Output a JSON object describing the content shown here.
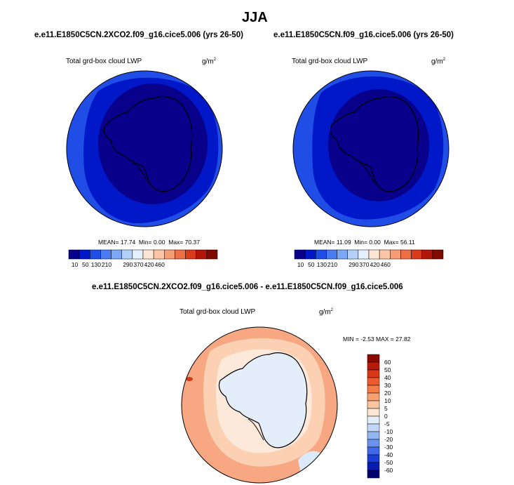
{
  "title": "JJA",
  "panels": [
    {
      "case": "e.e11.E1850C5CN.2XCO2.f09_g16.cice5.006 (yrs 26-50)",
      "variable": "Total grd-box cloud LWP",
      "units_base": "g/m",
      "units_exp": "2",
      "stats": {
        "mean_label": "MEAN=",
        "mean": "17.74",
        "min_label": "Min=",
        "min": "0.00",
        "max_label": "Max=",
        "max": "70.37"
      }
    },
    {
      "case": "e.e11.E1850C5CN.f09_g16.cice5.006 (yrs 26-50)",
      "variable": "Total grd-box cloud LWP",
      "units_base": "g/m",
      "units_exp": "2",
      "stats": {
        "mean_label": "MEAN=",
        "mean": "11.09",
        "min_label": "Min=",
        "min": "0.00",
        "max_label": "Max=",
        "max": "56.11"
      }
    },
    {
      "case": "e.e11.E1850C5CN.2XCO2.f09_g16.cice5.006 - e.e11.E1850C5CN.f09_g16.cice5.006",
      "variable": "Total grd-box cloud LWP",
      "units_base": "g/m",
      "units_exp": "2",
      "stats": {
        "min_label": "MIN =",
        "min": "-2.53",
        "max_label": "MAX =",
        "max": "27.82"
      }
    }
  ],
  "chart_data": [
    {
      "type": "heatmap",
      "projection": "south-polar stereographic",
      "colorbar": {
        "orientation": "horizontal",
        "levels": [
          "10",
          "50",
          "130",
          "210",
          "290",
          "370",
          "420",
          "460"
        ],
        "colors": [
          "#08008a",
          "#0018c8",
          "#1f4de6",
          "#4a7bf0",
          "#7ba8f4",
          "#b4d0f8",
          "#e6f0fc",
          "#fde5d3",
          "#fbc5a6",
          "#f59d74",
          "#ee6f45",
          "#d83b1c",
          "#b11608",
          "#7f0a00"
        ]
      },
      "map_colors": [
        "#08008a",
        "#0018c8",
        "#1f4de6"
      ]
    },
    {
      "type": "heatmap",
      "projection": "south-polar stereographic",
      "colorbar": {
        "orientation": "horizontal",
        "levels": [
          "10",
          "50",
          "130",
          "210",
          "290",
          "370",
          "420",
          "460"
        ],
        "colors": [
          "#08008a",
          "#0018c8",
          "#1f4de6",
          "#4a7bf0",
          "#7ba8f4",
          "#b4d0f8",
          "#e6f0fc",
          "#fde5d3",
          "#fbc5a6",
          "#f59d74",
          "#ee6f45",
          "#d83b1c",
          "#b11608",
          "#7f0a00"
        ]
      },
      "map_colors": [
        "#08008a",
        "#0018c8",
        "#1f4de6"
      ]
    },
    {
      "type": "heatmap",
      "projection": "south-polar stereographic",
      "colorbar": {
        "orientation": "vertical",
        "levels": [
          "60",
          "50",
          "40",
          "30",
          "20",
          "10",
          "5",
          "0",
          "-5",
          "-10",
          "-20",
          "-30",
          "-40",
          "-50",
          "-60"
        ],
        "colors": [
          "#8a0a00",
          "#b81a0a",
          "#d83818",
          "#ee5a2c",
          "#f57d4a",
          "#f9a070",
          "#fbc3a0",
          "#fde6d2",
          "#e4eefb",
          "#c2d7f7",
          "#94b6f3",
          "#6a92ee",
          "#3f69e6",
          "#1b3fd6",
          "#0a1cb0",
          "#02006e"
        ]
      },
      "map_colors": [
        "#f7a883",
        "#fcd0b2",
        "#fde9da",
        "#dce9f8"
      ]
    }
  ]
}
